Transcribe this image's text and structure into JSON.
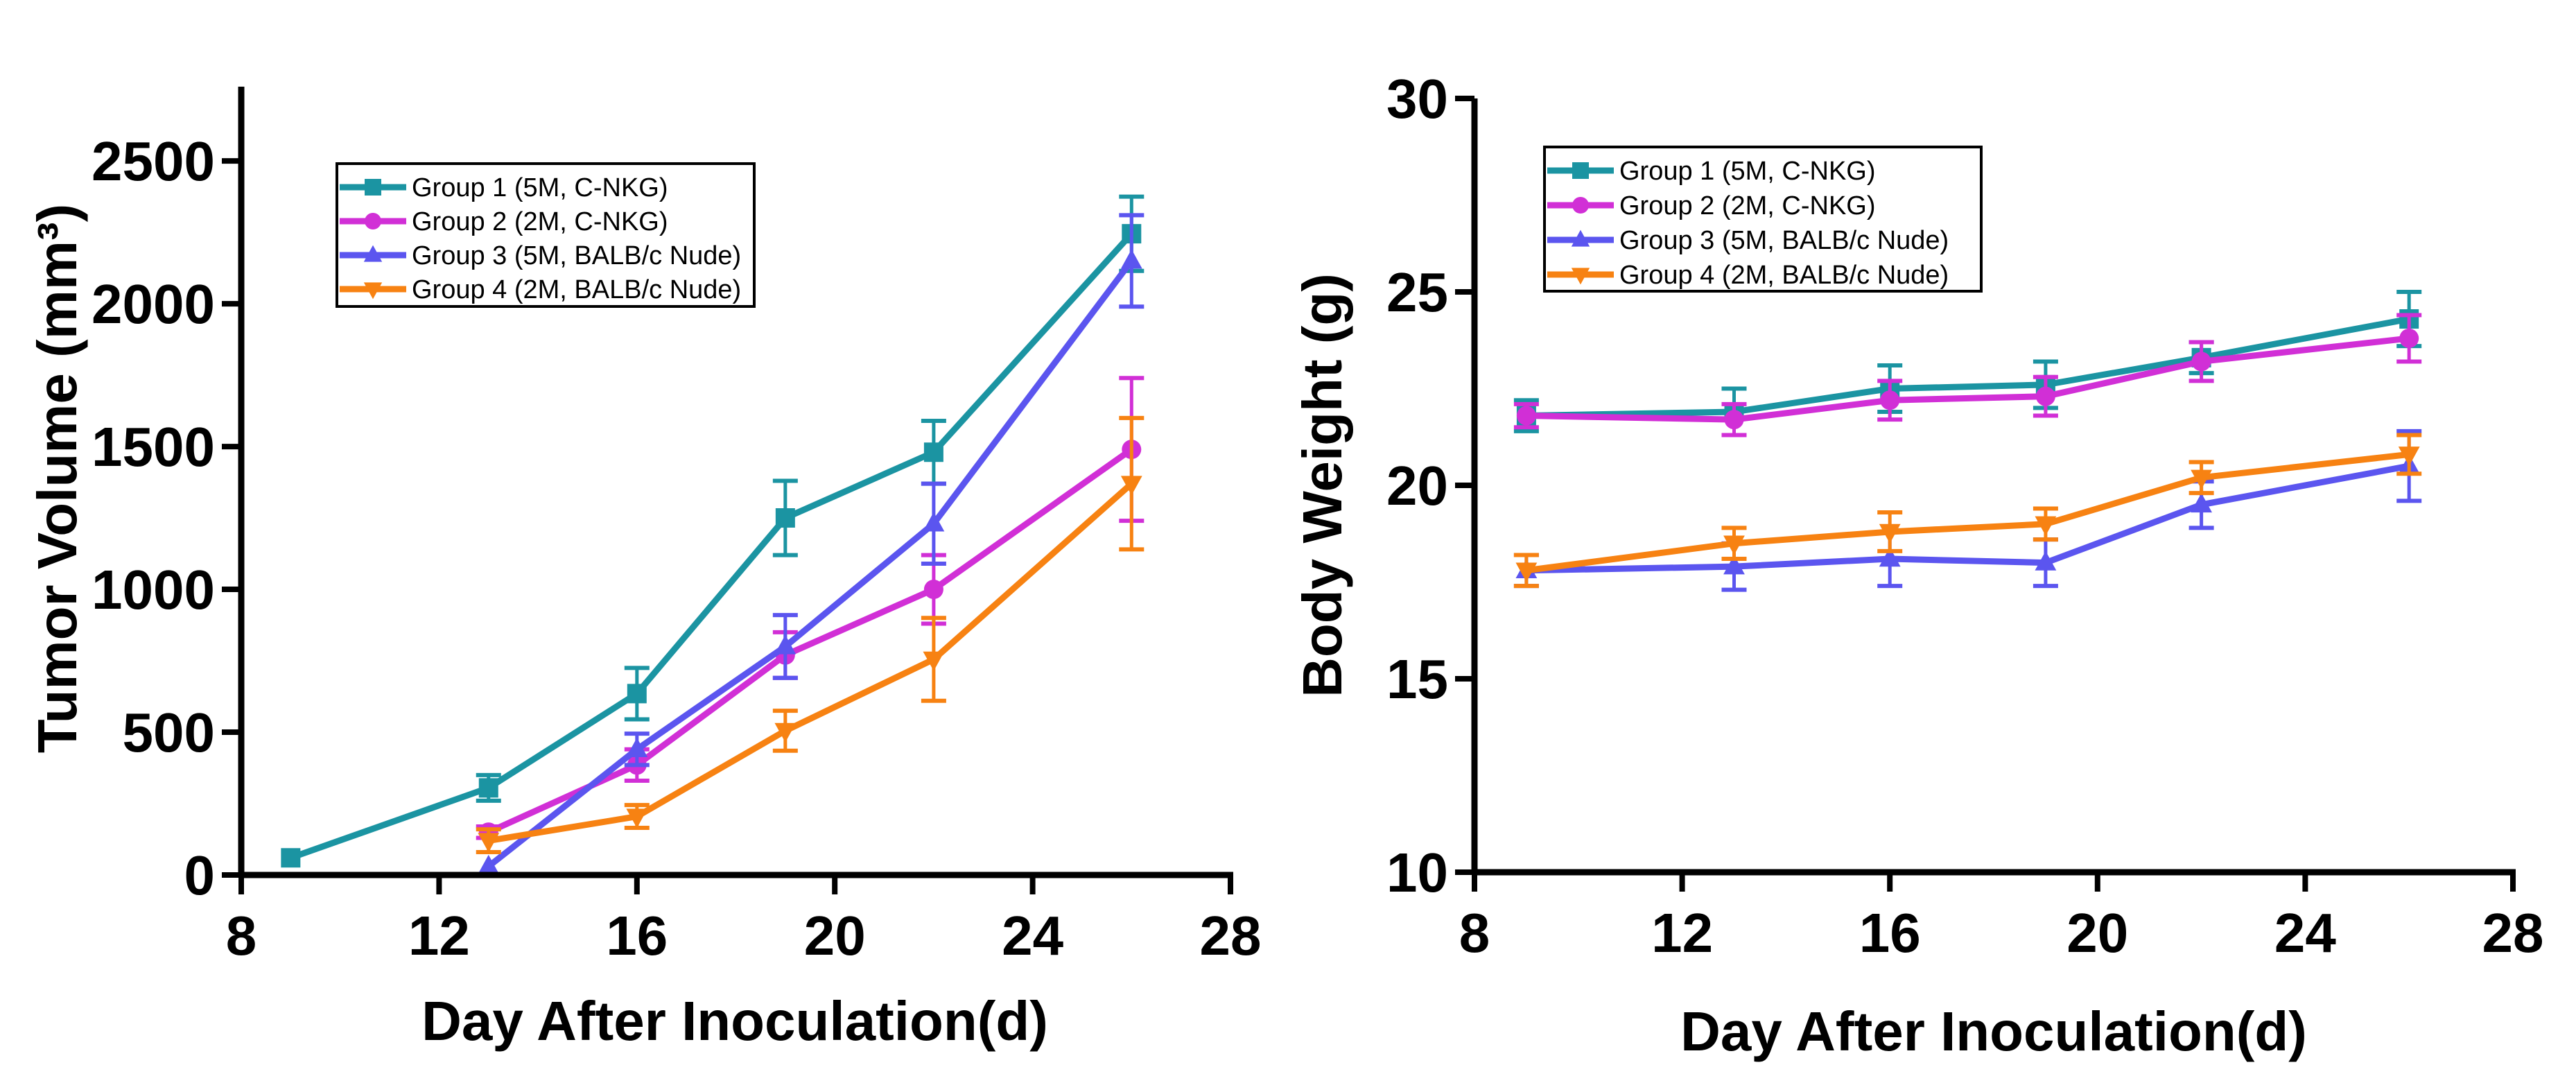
{
  "colors": {
    "group1": "#1b94a2",
    "group2": "#d12fd6",
    "group3": "#5b55ef",
    "group4": "#f78212",
    "axis": "#000000"
  },
  "chart_data": [
    {
      "id": "tumor",
      "type": "line",
      "title": "",
      "xlabel": "Day After Inoculation(d)",
      "ylabel": "Tumor Volume (mm³)",
      "xlim": [
        8,
        28
      ],
      "ylim": [
        0,
        2760
      ],
      "xticks": [
        8,
        12,
        16,
        20,
        24,
        28
      ],
      "yticks": [
        0,
        500,
        1000,
        1500,
        2000,
        2500
      ],
      "grid": false,
      "legend_position": "top-left",
      "series": [
        {
          "name": "Group 1 (5M, C-NKG)",
          "marker": "square",
          "color_key": "group1",
          "x": [
            9,
            13,
            16,
            19,
            22,
            26
          ],
          "y": [
            60,
            305,
            635,
            1250,
            1480,
            2245
          ],
          "err": [
            0,
            45,
            90,
            130,
            110,
            130
          ]
        },
        {
          "name": "Group 2 (2M, C-NKG)",
          "marker": "circle",
          "color_key": "group2",
          "x": [
            13,
            16,
            19,
            22,
            26
          ],
          "y": [
            150,
            385,
            770,
            1000,
            1490
          ],
          "err": [
            20,
            55,
            80,
            120,
            250
          ]
        },
        {
          "name": "Group 3 (5M, BALB/c Nude)",
          "marker": "triangle-up",
          "color_key": "group3",
          "x": [
            13,
            16,
            19,
            22,
            26
          ],
          "y": [
            30,
            440,
            800,
            1230,
            2150
          ],
          "err": [
            0,
            55,
            110,
            140,
            160
          ]
        },
        {
          "name": "Group 4 (2M, BALB/c Nude)",
          "marker": "triangle-down",
          "color_key": "group4",
          "x": [
            13,
            16,
            19,
            22,
            26
          ],
          "y": [
            120,
            205,
            505,
            755,
            1370
          ],
          "err": [
            40,
            40,
            70,
            145,
            230
          ]
        }
      ]
    },
    {
      "id": "weight",
      "type": "line",
      "title": "",
      "xlabel": "Day After Inoculation(d)",
      "ylabel": "Body Weight (g)",
      "xlim": [
        8,
        28
      ],
      "ylim": [
        10,
        30
      ],
      "xticks": [
        8,
        12,
        16,
        20,
        24,
        28
      ],
      "yticks": [
        10,
        15,
        20,
        25,
        30
      ],
      "grid": false,
      "legend_position": "top-left",
      "series": [
        {
          "name": "Group 1 (5M, C-NKG)",
          "marker": "square",
          "color_key": "group1",
          "x": [
            9,
            13,
            16,
            19,
            22,
            26
          ],
          "y": [
            21.8,
            21.9,
            22.5,
            22.6,
            23.3,
            24.3
          ],
          "err": [
            0.4,
            0.6,
            0.6,
            0.6,
            0.4,
            0.7
          ]
        },
        {
          "name": "Group 2 (2M, C-NKG)",
          "marker": "circle",
          "color_key": "group2",
          "x": [
            9,
            13,
            16,
            19,
            22,
            26
          ],
          "y": [
            21.8,
            21.7,
            22.2,
            22.3,
            23.2,
            23.8
          ],
          "err": [
            0.3,
            0.4,
            0.5,
            0.5,
            0.5,
            0.6
          ]
        },
        {
          "name": "Group 3 (5M, BALB/c Nude)",
          "marker": "triangle-up",
          "color_key": "group3",
          "x": [
            9,
            13,
            16,
            19,
            22,
            26
          ],
          "y": [
            17.8,
            17.9,
            18.1,
            18.0,
            19.5,
            20.5
          ],
          "err": [
            0.4,
            0.6,
            0.7,
            0.6,
            0.6,
            0.9
          ]
        },
        {
          "name": "Group 4 (2M, BALB/c Nude)",
          "marker": "triangle-down",
          "color_key": "group4",
          "x": [
            9,
            13,
            16,
            19,
            22,
            26
          ],
          "y": [
            17.8,
            18.5,
            18.8,
            19.0,
            20.2,
            20.8
          ],
          "err": [
            0.4,
            0.4,
            0.5,
            0.4,
            0.4,
            0.5
          ]
        }
      ]
    }
  ]
}
